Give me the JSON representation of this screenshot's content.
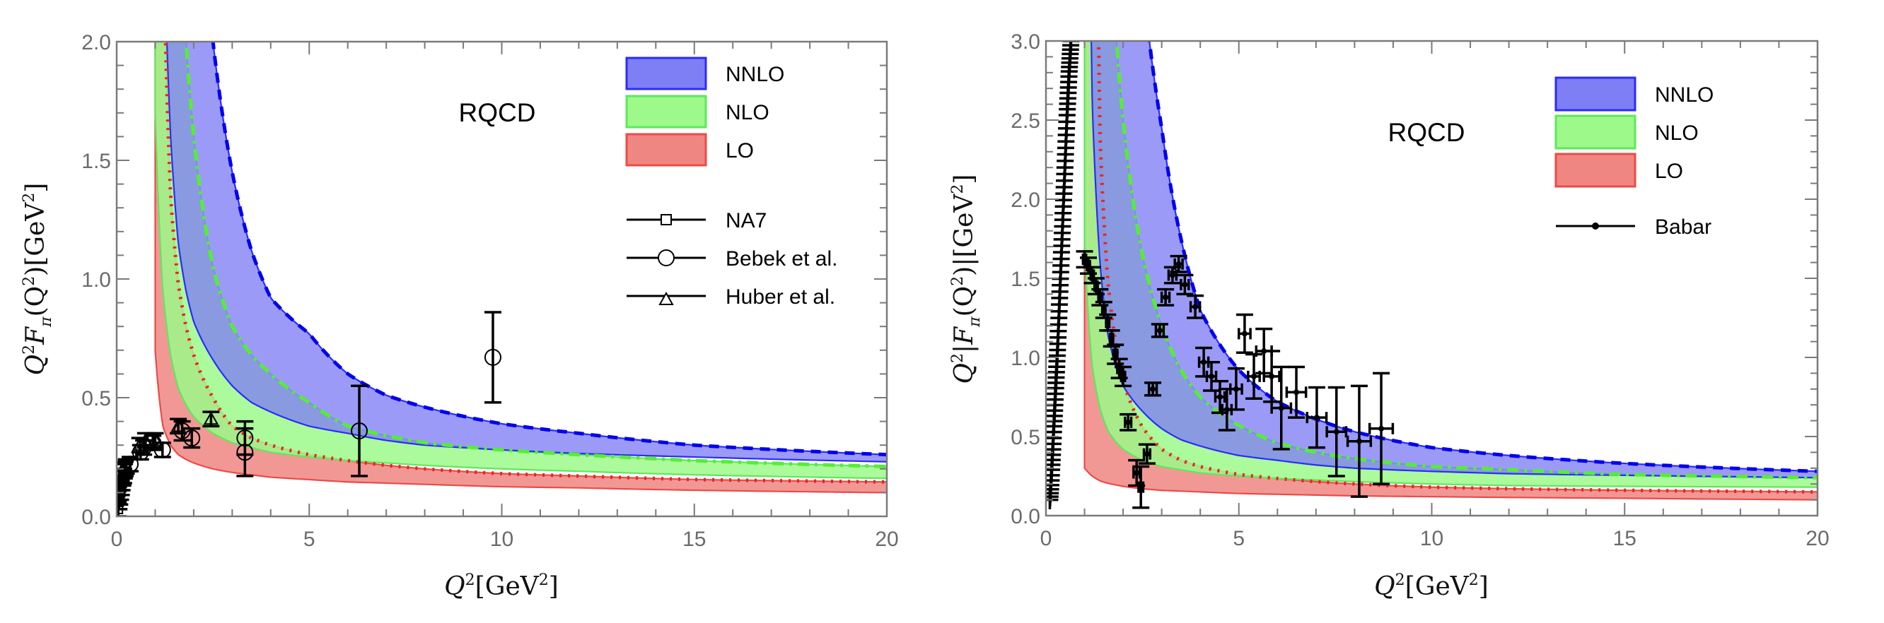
{
  "chart_data": [
    {
      "type": "area",
      "title": "",
      "annotation": "RQCD",
      "xlabel": "Q^2[GeV^2]",
      "xlabel_parts": {
        "sym": "Q",
        "sup": "2",
        "rest": "[GeV",
        "sup2": "2",
        "close": "]"
      },
      "ylabel": "Q^2 F_pi(Q^2)[GeV^2]",
      "ylabel_parts": [
        "Q",
        "2",
        "F",
        "π",
        "(Q",
        "2",
        ")[GeV",
        "2",
        "]"
      ],
      "xlim": [
        0,
        20
      ],
      "ylim": [
        0,
        2.0
      ],
      "xticks": [
        0,
        5,
        10,
        15,
        20
      ],
      "xtick_labels": [
        "0",
        "5",
        "10",
        "15",
        "20"
      ],
      "yticks": [
        0.0,
        0.5,
        1.0,
        1.5,
        2.0
      ],
      "ytick_labels": [
        "0.0",
        "0.5",
        "1.0",
        "1.5",
        "2.0"
      ],
      "grid": false,
      "legend_position": "top-right",
      "bands": [
        {
          "name": "NNLO",
          "color": "#7f7ff5",
          "edge": "#2b2bff",
          "line_color": "#0000ee",
          "line_style": "dashed",
          "x": [
            1.0,
            1.2,
            1.4,
            1.6,
            1.8,
            2.0,
            2.5,
            3.0,
            3.5,
            4.0,
            5.0,
            6.0,
            7.0,
            8.0,
            10.0,
            12.0,
            15.0,
            20.0
          ],
          "upper": [
            9.9,
            9.9,
            9.9,
            9.9,
            9.9,
            3.2,
            2.0,
            1.45,
            1.12,
            0.92,
            0.77,
            0.6,
            0.51,
            0.46,
            0.39,
            0.35,
            0.3,
            0.26
          ],
          "lower": [
            9.9,
            2.6,
            1.6,
            1.15,
            0.95,
            0.82,
            0.66,
            0.55,
            0.48,
            0.44,
            0.38,
            0.35,
            0.32,
            0.3,
            0.28,
            0.265,
            0.25,
            0.23
          ]
        },
        {
          "name": "NLO",
          "color": "#9cf98a",
          "edge": "#5ee85e",
          "line_color": "#55ee33",
          "line_style": "dashdot",
          "x": [
            1.0,
            1.2,
            1.4,
            1.6,
            1.8,
            2.0,
            2.5,
            3.0,
            3.5,
            4.0,
            5.0,
            6.0,
            7.0,
            8.0,
            10.0,
            12.0,
            15.0,
            20.0
          ],
          "upper": [
            9.9,
            9.9,
            9.9,
            9.9,
            2.0,
            1.6,
            1.05,
            0.8,
            0.68,
            0.6,
            0.48,
            0.38,
            0.34,
            0.31,
            0.28,
            0.26,
            0.235,
            0.21
          ],
          "lower": [
            1.71,
            0.95,
            0.68,
            0.54,
            0.47,
            0.42,
            0.35,
            0.31,
            0.29,
            0.27,
            0.25,
            0.235,
            0.225,
            0.215,
            0.2,
            0.19,
            0.175,
            0.16
          ]
        },
        {
          "name": "LO",
          "color": "#ef8682",
          "edge": "#ee4a46",
          "line_color": "#ee2222",
          "line_style": "dotted",
          "x": [
            1.0,
            1.2,
            1.4,
            1.6,
            1.8,
            2.0,
            2.5,
            3.0,
            3.5,
            4.0,
            5.0,
            6.0,
            7.0,
            8.0,
            10.0,
            12.0,
            15.0,
            20.0
          ],
          "upper": [
            9.9,
            2.5,
            1.35,
            0.98,
            0.8,
            0.68,
            0.5,
            0.38,
            0.33,
            0.3,
            0.26,
            0.235,
            0.215,
            0.2,
            0.18,
            0.17,
            0.155,
            0.145
          ],
          "lower": [
            0.7,
            0.38,
            0.3,
            0.26,
            0.24,
            0.225,
            0.2,
            0.185,
            0.175,
            0.165,
            0.155,
            0.145,
            0.14,
            0.135,
            0.125,
            0.12,
            0.11,
            0.1
          ]
        }
      ],
      "legend_bands": [
        "NNLO",
        "NLO",
        "LO"
      ],
      "datasets": [
        {
          "name": "NA7",
          "marker": "square",
          "points": [
            {
              "x": 0.04,
              "y": 0.03,
              "err": 0.03
            },
            {
              "x": 0.06,
              "y": 0.06,
              "err": 0.03
            },
            {
              "x": 0.08,
              "y": 0.08,
              "err": 0.03
            },
            {
              "x": 0.1,
              "y": 0.1,
              "err": 0.03
            },
            {
              "x": 0.12,
              "y": 0.12,
              "err": 0.03
            },
            {
              "x": 0.14,
              "y": 0.14,
              "err": 0.03
            },
            {
              "x": 0.16,
              "y": 0.16,
              "err": 0.03
            },
            {
              "x": 0.18,
              "y": 0.17,
              "err": 0.03
            },
            {
              "x": 0.2,
              "y": 0.19,
              "err": 0.03
            },
            {
              "x": 0.22,
              "y": 0.2,
              "err": 0.03
            },
            {
              "x": 0.25,
              "y": 0.21,
              "err": 0.03
            }
          ]
        },
        {
          "name": "Bebek et al.",
          "marker": "circle",
          "points": [
            {
              "x": 0.35,
              "y": 0.22,
              "err": 0.03
            },
            {
              "x": 0.62,
              "y": 0.27,
              "err": 0.03
            },
            {
              "x": 0.7,
              "y": 0.29,
              "err": 0.03
            },
            {
              "x": 0.94,
              "y": 0.31,
              "err": 0.03
            },
            {
              "x": 1.19,
              "y": 0.28,
              "err": 0.03
            },
            {
              "x": 1.7,
              "y": 0.36,
              "err": 0.04
            },
            {
              "x": 1.95,
              "y": 0.33,
              "err": 0.04
            },
            {
              "x": 3.33,
              "y": 0.33,
              "err": 0.07
            },
            {
              "x": 3.33,
              "y": 0.27,
              "err": 0.1
            },
            {
              "x": 6.3,
              "y": 0.36,
              "err": 0.19
            },
            {
              "x": 9.77,
              "y": 0.67,
              "err": 0.19
            }
          ]
        },
        {
          "name": "Huber et al.",
          "marker": "triangle",
          "points": [
            {
              "x": 0.6,
              "y": 0.3,
              "err": 0.03
            },
            {
              "x": 0.75,
              "y": 0.32,
              "err": 0.03
            },
            {
              "x": 1.0,
              "y": 0.32,
              "err": 0.03
            },
            {
              "x": 1.6,
              "y": 0.38,
              "err": 0.03
            },
            {
              "x": 2.45,
              "y": 0.41,
              "err": 0.03
            }
          ]
        }
      ]
    },
    {
      "type": "area",
      "title": "",
      "annotation": "RQCD",
      "xlabel": "Q^2[GeV^2]",
      "xlabel_parts": {
        "sym": "Q",
        "sup": "2",
        "rest": "[GeV",
        "sup2": "2",
        "close": "]"
      },
      "ylabel": "Q^2|F_pi(Q^2)|[GeV^2]",
      "ylabel_parts": [
        "Q",
        "2",
        "|F",
        "π",
        "(Q",
        "2",
        ")|[GeV",
        "2",
        "]"
      ],
      "xlim": [
        0,
        20
      ],
      "ylim": [
        0,
        3.0
      ],
      "xticks": [
        0,
        5,
        10,
        15,
        20
      ],
      "xtick_labels": [
        "0",
        "5",
        "10",
        "15",
        "20"
      ],
      "yticks": [
        0.0,
        0.5,
        1.0,
        1.5,
        2.0,
        2.5,
        3.0
      ],
      "ytick_labels": [
        "0.0",
        "0.5",
        "1.0",
        "1.5",
        "2.0",
        "2.5",
        "3.0"
      ],
      "grid": false,
      "legend_position": "top-right",
      "bands": [
        {
          "name": "NNLO",
          "color": "#7f7ff5",
          "edge": "#2b2bff",
          "line_color": "#0000ee",
          "line_style": "dashed",
          "x": [
            1.0,
            1.2,
            1.4,
            1.6,
            1.8,
            2.0,
            2.5,
            3.0,
            3.5,
            4.0,
            5.0,
            6.0,
            7.0,
            8.0,
            10.0,
            12.0,
            15.0,
            20.0
          ],
          "upper": [
            9.9,
            9.9,
            9.9,
            9.9,
            9.9,
            9.9,
            3.4,
            2.45,
            1.75,
            1.3,
            0.92,
            0.72,
            0.61,
            0.53,
            0.43,
            0.38,
            0.33,
            0.28
          ],
          "lower": [
            9.9,
            2.6,
            1.6,
            1.15,
            0.95,
            0.82,
            0.66,
            0.55,
            0.48,
            0.44,
            0.38,
            0.35,
            0.32,
            0.3,
            0.28,
            0.265,
            0.255,
            0.24
          ]
        },
        {
          "name": "NLO",
          "color": "#9cf98a",
          "edge": "#5ee85e",
          "line_color": "#55ee33",
          "line_style": "dashdot",
          "x": [
            1.0,
            1.2,
            1.4,
            1.6,
            1.8,
            2.0,
            2.5,
            3.0,
            3.5,
            4.0,
            5.0,
            6.0,
            7.0,
            8.0,
            10.0,
            12.0,
            15.0,
            20.0
          ],
          "upper": [
            9.9,
            9.9,
            9.9,
            9.9,
            3.1,
            2.5,
            1.65,
            1.2,
            0.92,
            0.75,
            0.57,
            0.46,
            0.4,
            0.36,
            0.31,
            0.29,
            0.26,
            0.24
          ],
          "lower": [
            1.71,
            0.95,
            0.68,
            0.54,
            0.47,
            0.42,
            0.35,
            0.31,
            0.29,
            0.27,
            0.25,
            0.235,
            0.225,
            0.215,
            0.2,
            0.19,
            0.185,
            0.18
          ]
        },
        {
          "name": "LO",
          "color": "#ef8682",
          "edge": "#ee4a46",
          "line_color": "#ee2222",
          "line_style": "dotted",
          "x": [
            1.0,
            1.2,
            1.4,
            1.6,
            1.8,
            2.0,
            2.5,
            3.0,
            3.5,
            4.0,
            5.0,
            6.0,
            7.0,
            8.0,
            10.0,
            12.0,
            15.0,
            20.0
          ],
          "upper": [
            9.9,
            9.9,
            2.4,
            1.5,
            1.1,
            0.85,
            0.56,
            0.42,
            0.35,
            0.31,
            0.26,
            0.235,
            0.215,
            0.2,
            0.18,
            0.17,
            0.16,
            0.15
          ],
          "lower": [
            0.3,
            0.25,
            0.22,
            0.205,
            0.195,
            0.185,
            0.17,
            0.16,
            0.155,
            0.15,
            0.14,
            0.135,
            0.13,
            0.125,
            0.12,
            0.115,
            0.11,
            0.1
          ]
        }
      ],
      "legend_bands": [
        "NNLO",
        "NLO",
        "LO"
      ],
      "datasets": [
        {
          "name": "Babar",
          "marker": "dot",
          "dense_curve": {
            "x": [
              0.1,
              0.15,
              0.2,
              0.25,
              0.3,
              0.35,
              0.4,
              0.45,
              0.5,
              0.55,
              0.6,
              0.65
            ],
            "y": [
              0.1,
              0.3,
              0.55,
              0.8,
              1.05,
              1.35,
              1.65,
              1.95,
              2.25,
              2.55,
              2.8,
              3.0
            ],
            "err": 0.06
          },
          "points": [
            {
              "x": 1.0,
              "y": 1.62,
              "err": 0.05,
              "xerr": 0.04
            },
            {
              "x": 1.1,
              "y": 1.58,
              "err": 0.05,
              "xerr": 0.04
            },
            {
              "x": 1.2,
              "y": 1.52,
              "err": 0.05,
              "xerr": 0.04
            },
            {
              "x": 1.3,
              "y": 1.45,
              "err": 0.05,
              "xerr": 0.04
            },
            {
              "x": 1.4,
              "y": 1.38,
              "err": 0.05,
              "xerr": 0.04
            },
            {
              "x": 1.5,
              "y": 1.3,
              "err": 0.05,
              "xerr": 0.04
            },
            {
              "x": 1.6,
              "y": 1.22,
              "err": 0.05,
              "xerr": 0.04
            },
            {
              "x": 1.7,
              "y": 1.12,
              "err": 0.05,
              "xerr": 0.04
            },
            {
              "x": 1.8,
              "y": 1.02,
              "err": 0.06,
              "xerr": 0.05
            },
            {
              "x": 1.9,
              "y": 0.93,
              "err": 0.06,
              "xerr": 0.05
            },
            {
              "x": 2.0,
              "y": 0.88,
              "err": 0.06,
              "xerr": 0.05
            },
            {
              "x": 2.13,
              "y": 0.59,
              "err": 0.05,
              "xerr": 0.08
            },
            {
              "x": 2.35,
              "y": 0.27,
              "err": 0.08,
              "xerr": 0.08
            },
            {
              "x": 2.46,
              "y": 0.18,
              "err": 0.13,
              "xerr": 0.06
            },
            {
              "x": 2.62,
              "y": 0.39,
              "err": 0.06,
              "xerr": 0.08
            },
            {
              "x": 2.77,
              "y": 0.8,
              "err": 0.04,
              "xerr": 0.1
            },
            {
              "x": 2.95,
              "y": 1.17,
              "err": 0.04,
              "xerr": 0.1
            },
            {
              "x": 3.1,
              "y": 1.38,
              "err": 0.05,
              "xerr": 0.1
            },
            {
              "x": 3.28,
              "y": 1.52,
              "err": 0.05,
              "xerr": 0.1
            },
            {
              "x": 3.44,
              "y": 1.59,
              "err": 0.05,
              "xerr": 0.1
            },
            {
              "x": 3.6,
              "y": 1.46,
              "err": 0.06,
              "xerr": 0.1
            },
            {
              "x": 3.87,
              "y": 1.32,
              "err": 0.07,
              "xerr": 0.12
            },
            {
              "x": 4.09,
              "y": 0.97,
              "err": 0.09,
              "xerr": 0.12
            },
            {
              "x": 4.29,
              "y": 0.88,
              "err": 0.09,
              "xerr": 0.12
            },
            {
              "x": 4.51,
              "y": 0.75,
              "err": 0.1,
              "xerr": 0.12
            },
            {
              "x": 4.69,
              "y": 0.67,
              "err": 0.13,
              "xerr": 0.12
            },
            {
              "x": 4.93,
              "y": 0.8,
              "err": 0.13,
              "xerr": 0.15
            },
            {
              "x": 5.15,
              "y": 1.15,
              "err": 0.12,
              "xerr": 0.15
            },
            {
              "x": 5.39,
              "y": 0.88,
              "err": 0.14,
              "xerr": 0.15
            },
            {
              "x": 5.65,
              "y": 1.04,
              "err": 0.14,
              "xerr": 0.2
            },
            {
              "x": 5.85,
              "y": 0.88,
              "err": 0.16,
              "xerr": 0.2
            },
            {
              "x": 6.1,
              "y": 0.68,
              "err": 0.26,
              "xerr": 0.25
            },
            {
              "x": 6.49,
              "y": 0.78,
              "err": 0.16,
              "xerr": 0.25
            },
            {
              "x": 7.02,
              "y": 0.62,
              "err": 0.19,
              "xerr": 0.25
            },
            {
              "x": 7.53,
              "y": 0.53,
              "err": 0.28,
              "xerr": 0.25
            },
            {
              "x": 8.12,
              "y": 0.47,
              "err": 0.35,
              "xerr": 0.3
            },
            {
              "x": 8.69,
              "y": 0.55,
              "err": 0.35,
              "xerr": 0.3
            }
          ]
        }
      ]
    }
  ]
}
